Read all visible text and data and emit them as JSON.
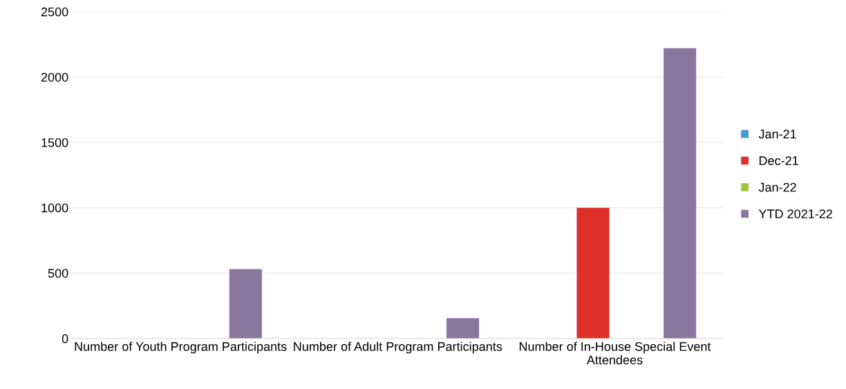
{
  "chart_data": {
    "type": "bar",
    "categories": [
      "Number of Youth Program Participants",
      "Number of Adult Program Participants",
      "Number of In-House Special Event Attendees"
    ],
    "series": [
      {
        "name": "Jan-21",
        "color": "#4a9bd1",
        "values": [
          0,
          0,
          0
        ]
      },
      {
        "name": "Dec-21",
        "color": "#e0302a",
        "values": [
          0,
          0,
          1000
        ]
      },
      {
        "name": "Jan-22",
        "color": "#a3c43a",
        "values": [
          0,
          0,
          0
        ]
      },
      {
        "name": "YTD 2021-22",
        "color": "#8a77a0",
        "values": [
          530,
          155,
          2220
        ]
      }
    ],
    "ylim": [
      0,
      2500
    ],
    "yticks": [
      0,
      500,
      1000,
      1500,
      2000,
      2500
    ],
    "grid": "y",
    "legend": "right"
  }
}
